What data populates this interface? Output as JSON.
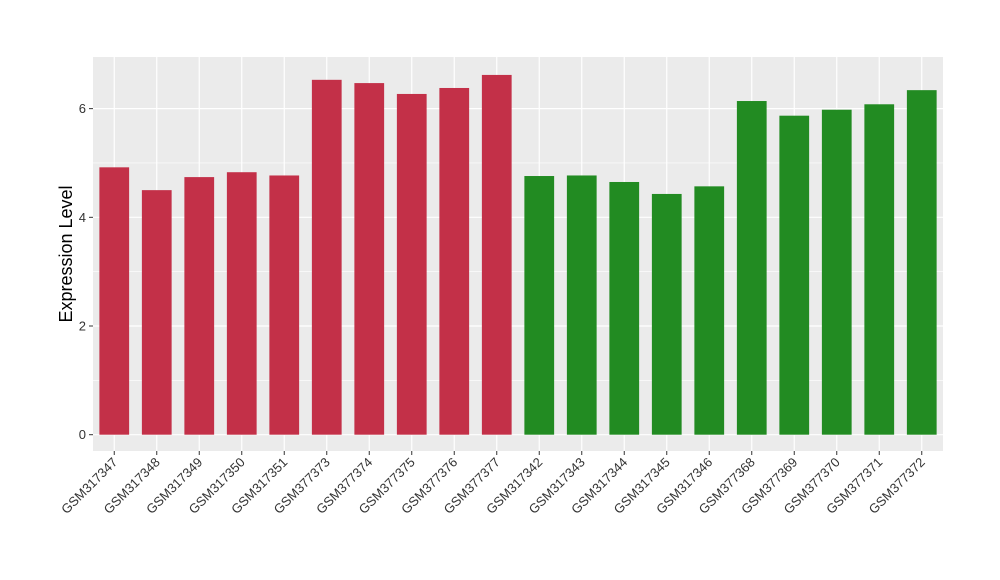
{
  "chart_data": {
    "type": "bar",
    "title": "",
    "xlabel": "",
    "ylabel": "Expression Level",
    "ylim": [
      -0.3,
      6.95
    ],
    "yticks": [
      0,
      2,
      4,
      6
    ],
    "grid": true,
    "categories": [
      "GSM317347",
      "GSM317348",
      "GSM317349",
      "GSM317350",
      "GSM317351",
      "GSM377373",
      "GSM377374",
      "GSM377375",
      "GSM377376",
      "GSM377377",
      "GSM317342",
      "GSM317343",
      "GSM317344",
      "GSM317345",
      "GSM317346",
      "GSM377368",
      "GSM377369",
      "GSM377370",
      "GSM377371",
      "GSM377372"
    ],
    "values": [
      4.92,
      4.5,
      4.74,
      4.83,
      4.77,
      6.53,
      6.47,
      6.27,
      6.38,
      6.62,
      4.76,
      4.77,
      4.65,
      4.43,
      4.57,
      6.14,
      5.87,
      5.98,
      6.08,
      6.34
    ],
    "bar_colors": [
      "#c33048",
      "#c33048",
      "#c33048",
      "#c33048",
      "#c33048",
      "#c33048",
      "#c33048",
      "#c33048",
      "#c33048",
      "#c33048",
      "#228b22",
      "#228b22",
      "#228b22",
      "#228b22",
      "#228b22",
      "#228b22",
      "#228b22",
      "#228b22",
      "#228b22",
      "#228b22"
    ],
    "panel_background": "#ebebeb",
    "grid_color": "#ffffff"
  }
}
